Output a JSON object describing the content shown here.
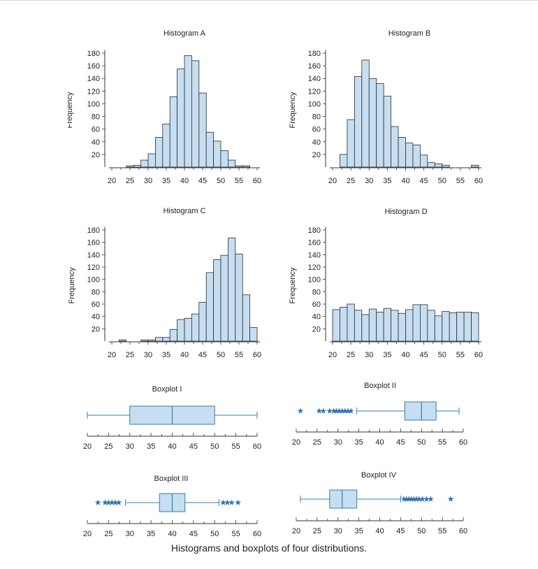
{
  "caption": "Histograms and boxplots of four distributions.",
  "colors": {
    "fill": "#c6def1",
    "stroke": "#2b2b2b",
    "box_stroke": "#3a7ca8",
    "outlier": "#2f74b5"
  },
  "chart_data": [
    {
      "type": "histogram",
      "title": "Histogram A",
      "ylabel": "Frequency",
      "xlim": [
        20,
        60
      ],
      "ylim": [
        0,
        180
      ],
      "xticks": [
        20,
        25,
        30,
        35,
        40,
        45,
        50,
        55,
        60
      ],
      "yticks": [
        20,
        40,
        60,
        80,
        100,
        120,
        140,
        160,
        180
      ],
      "bin_width": 2,
      "bins": [
        20,
        22,
        24,
        26,
        28,
        30,
        32,
        34,
        36,
        38,
        40,
        42,
        44,
        46,
        48,
        50,
        52,
        54,
        56,
        58
      ],
      "values": [
        0,
        0,
        2,
        3,
        11,
        21,
        47,
        68,
        111,
        155,
        176,
        168,
        117,
        55,
        41,
        26,
        11,
        2,
        2,
        0
      ]
    },
    {
      "type": "histogram",
      "title": "Histogram B",
      "ylabel": "Frequency",
      "xlim": [
        20,
        60
      ],
      "ylim": [
        0,
        180
      ],
      "xticks": [
        20,
        25,
        30,
        35,
        40,
        45,
        50,
        55,
        60
      ],
      "yticks": [
        20,
        40,
        60,
        80,
        100,
        120,
        140,
        160,
        180
      ],
      "bin_width": 2,
      "bins": [
        20,
        22,
        24,
        26,
        28,
        30,
        32,
        34,
        36,
        38,
        40,
        42,
        44,
        46,
        48,
        50,
        52,
        54,
        56,
        58
      ],
      "values": [
        0,
        20,
        75,
        143,
        169,
        140,
        132,
        112,
        64,
        47,
        38,
        35,
        19,
        7,
        5,
        3,
        0,
        0,
        0,
        3
      ]
    },
    {
      "type": "histogram",
      "title": "Histogram C",
      "ylabel": "Frequency",
      "xlim": [
        20,
        60
      ],
      "ylim": [
        0,
        180
      ],
      "xticks": [
        20,
        25,
        30,
        35,
        40,
        45,
        50,
        55,
        60
      ],
      "yticks": [
        20,
        40,
        60,
        80,
        100,
        120,
        140,
        160,
        180
      ],
      "bin_width": 2,
      "bins": [
        20,
        22,
        24,
        26,
        28,
        30,
        32,
        34,
        36,
        38,
        40,
        42,
        44,
        46,
        48,
        50,
        52,
        54,
        56,
        58
      ],
      "values": [
        0,
        2,
        0,
        0,
        2,
        2,
        6,
        6,
        19,
        35,
        37,
        44,
        63,
        111,
        132,
        139,
        167,
        141,
        75,
        22
      ]
    },
    {
      "type": "histogram",
      "title": "Histogram D",
      "ylabel": "Frequency",
      "xlim": [
        20,
        60
      ],
      "ylim": [
        0,
        180
      ],
      "xticks": [
        20,
        25,
        30,
        35,
        40,
        45,
        50,
        55,
        60
      ],
      "yticks": [
        20,
        40,
        60,
        80,
        100,
        120,
        140,
        160,
        180
      ],
      "bin_width": 2,
      "bins": [
        20,
        22,
        24,
        26,
        28,
        30,
        32,
        34,
        36,
        38,
        40,
        42,
        44,
        46,
        48,
        50,
        52,
        54,
        56,
        58
      ],
      "values": [
        51,
        55,
        60,
        50,
        43,
        52,
        47,
        53,
        50,
        45,
        51,
        59,
        59,
        50,
        41,
        48,
        46,
        47,
        47,
        46
      ]
    },
    {
      "type": "boxplot",
      "title": "Boxplot I",
      "xlim": [
        20,
        60
      ],
      "xticks": [
        20,
        25,
        30,
        35,
        40,
        45,
        50,
        55,
        60
      ],
      "whisker_low": 20,
      "q1": 30,
      "median": 40,
      "q3": 50,
      "whisker_high": 60,
      "outliers": []
    },
    {
      "type": "boxplot",
      "title": "Boxplot II",
      "xlim": [
        20,
        60
      ],
      "xticks": [
        20,
        25,
        30,
        35,
        40,
        45,
        50,
        55,
        60
      ],
      "whisker_low": 34.5,
      "q1": 46,
      "median": 50,
      "q3": 53.5,
      "whisker_high": 59,
      "outliers": [
        21,
        25.5,
        26.5,
        28,
        29,
        29.6,
        30.3,
        31,
        31.7,
        32.4,
        33.1
      ]
    },
    {
      "type": "boxplot",
      "title": "Boxplot III",
      "xlim": [
        20,
        60
      ],
      "xticks": [
        20,
        25,
        30,
        35,
        40,
        45,
        50,
        55,
        60
      ],
      "whisker_low": 29,
      "q1": 37,
      "median": 40,
      "q3": 43,
      "whisker_high": 51,
      "outliers": [
        22.5,
        24.2,
        25,
        25.8,
        26.6,
        27.4,
        52,
        53,
        54,
        55.5
      ]
    },
    {
      "type": "boxplot",
      "title": "Boxplot IV",
      "xlim": [
        20,
        60
      ],
      "xticks": [
        20,
        25,
        30,
        35,
        40,
        45,
        50,
        55,
        60
      ],
      "whisker_low": 21,
      "q1": 28,
      "median": 31,
      "q3": 34.5,
      "whisker_high": 45,
      "outliers": [
        45.8,
        46.4,
        47,
        47.6,
        48.2,
        48.8,
        49.4,
        50.2,
        51.2,
        52.2,
        57
      ]
    }
  ]
}
